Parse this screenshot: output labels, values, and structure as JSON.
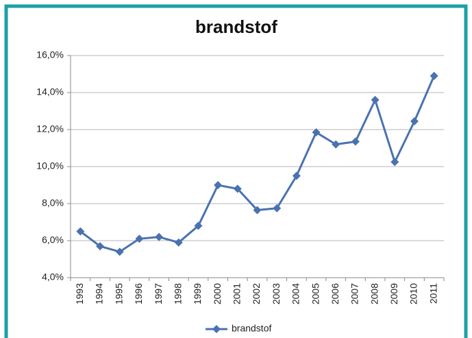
{
  "chart_data": {
    "type": "line",
    "title": "brandstof",
    "categories": [
      "1993",
      "1994",
      "1995",
      "1996",
      "1997",
      "1998",
      "1999",
      "2000",
      "2001",
      "2002",
      "2003",
      "2004",
      "2005",
      "2006",
      "2007",
      "2008",
      "2009",
      "2010",
      "2011"
    ],
    "series": [
      {
        "name": "brandstof",
        "color": "#4a72b0",
        "values": [
          6.5,
          5.7,
          5.4,
          6.1,
          6.2,
          5.9,
          6.8,
          9.0,
          8.8,
          7.65,
          7.75,
          9.5,
          11.85,
          11.2,
          11.35,
          13.6,
          10.25,
          12.45,
          14.9
        ]
      }
    ],
    "ylim": [
      4,
      16
    ],
    "yticks": [
      {
        "value": 4,
        "label": "4,0%"
      },
      {
        "value": 6,
        "label": "6,0%"
      },
      {
        "value": 8,
        "label": "8,0%"
      },
      {
        "value": 10,
        "label": "10,0%"
      },
      {
        "value": 12,
        "label": "12,0%"
      },
      {
        "value": 14,
        "label": "14,0%"
      },
      {
        "value": 16,
        "label": "16,0%"
      }
    ],
    "grid": true,
    "legend": "bottom"
  }
}
